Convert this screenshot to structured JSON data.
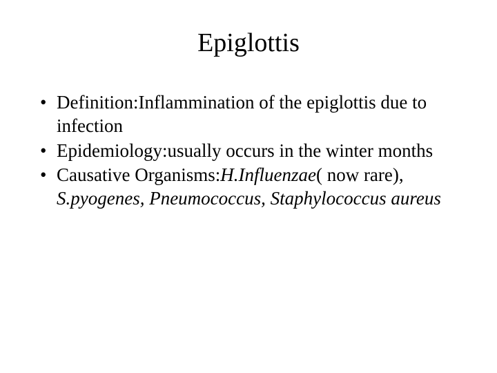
{
  "slide": {
    "title": "Epiglottis",
    "title_fontsize": 38,
    "body_fontsize": 27,
    "background_color": "#ffffff",
    "text_color": "#000000",
    "font_family": "Times New Roman",
    "bullets": [
      {
        "plain": "Definition:Inflammination of the epiglottis due to infection",
        "italic": ""
      },
      {
        "plain": "Epidemiology:usually occurs in the winter months",
        "italic": ""
      },
      {
        "plain": "Causative Organisms:",
        "italic": "H.Influenzae",
        "plain2": "( now rare), ",
        "italic2": "S.pyogenes, Pneumococcus, Staphylococcus aureus"
      }
    ]
  }
}
